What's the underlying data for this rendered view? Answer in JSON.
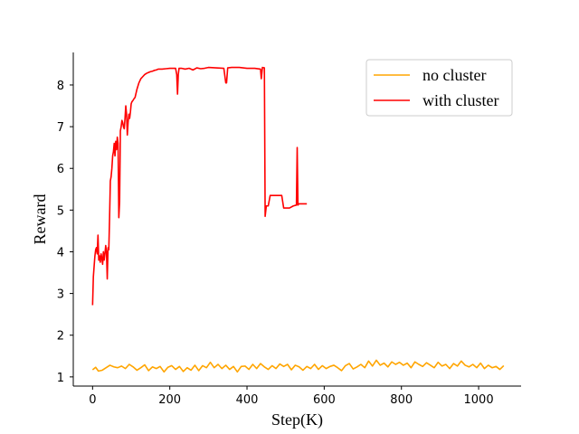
{
  "chart_data": {
    "type": "line",
    "xlabel": "Step(K)",
    "ylabel": "Reward",
    "xlim": [
      -50,
      1110
    ],
    "ylim": [
      0.78,
      8.78
    ],
    "xticks": [
      0,
      200,
      400,
      600,
      800,
      1000
    ],
    "yticks": [
      1,
      2,
      3,
      4,
      5,
      6,
      7,
      8
    ],
    "legend_position": "top-right",
    "series": [
      {
        "name": "no cluster",
        "color": "#FFA500",
        "x": [
          0,
          8,
          15,
          25,
          35,
          45,
          55,
          65,
          75,
          85,
          95,
          105,
          115,
          125,
          135,
          145,
          155,
          165,
          175,
          185,
          195,
          205,
          215,
          225,
          235,
          245,
          255,
          265,
          275,
          285,
          295,
          305,
          315,
          325,
          335,
          345,
          355,
          365,
          375,
          385,
          395,
          405,
          415,
          425,
          435,
          445,
          455,
          465,
          475,
          485,
          495,
          505,
          515,
          525,
          535,
          545,
          555,
          565,
          575,
          585,
          595,
          605,
          615,
          625,
          635,
          645,
          655,
          665,
          675,
          685,
          695,
          705,
          715,
          725,
          735,
          745,
          755,
          765,
          775,
          785,
          795,
          805,
          815,
          825,
          835,
          845,
          855,
          865,
          875,
          885,
          895,
          905,
          915,
          925,
          935,
          945,
          955,
          965,
          975,
          985,
          995,
          1005,
          1015,
          1025,
          1035,
          1045,
          1055,
          1065
        ],
        "values": [
          1.17,
          1.23,
          1.14,
          1.16,
          1.22,
          1.28,
          1.24,
          1.22,
          1.26,
          1.2,
          1.3,
          1.24,
          1.16,
          1.22,
          1.29,
          1.15,
          1.24,
          1.2,
          1.25,
          1.12,
          1.23,
          1.27,
          1.18,
          1.25,
          1.13,
          1.22,
          1.16,
          1.28,
          1.15,
          1.27,
          1.22,
          1.35,
          1.22,
          1.3,
          1.2,
          1.28,
          1.18,
          1.25,
          1.12,
          1.25,
          1.26,
          1.18,
          1.3,
          1.2,
          1.32,
          1.24,
          1.18,
          1.27,
          1.2,
          1.31,
          1.25,
          1.3,
          1.17,
          1.28,
          1.24,
          1.16,
          1.25,
          1.2,
          1.3,
          1.18,
          1.27,
          1.2,
          1.25,
          1.28,
          1.22,
          1.15,
          1.27,
          1.32,
          1.19,
          1.24,
          1.3,
          1.22,
          1.38,
          1.26,
          1.4,
          1.28,
          1.33,
          1.24,
          1.36,
          1.3,
          1.35,
          1.28,
          1.33,
          1.22,
          1.36,
          1.3,
          1.25,
          1.34,
          1.28,
          1.22,
          1.35,
          1.26,
          1.3,
          1.2,
          1.32,
          1.26,
          1.38,
          1.28,
          1.24,
          1.3,
          1.22,
          1.33,
          1.2,
          1.28,
          1.22,
          1.25,
          1.18,
          1.27
        ]
      },
      {
        "name": "with cluster",
        "color": "#FF0000",
        "x": [
          0,
          2,
          4,
          6,
          8,
          10,
          12,
          14,
          16,
          18,
          20,
          22,
          24,
          26,
          28,
          30,
          32,
          34,
          36,
          38,
          40,
          42,
          44,
          46,
          48,
          50,
          52,
          54,
          56,
          58,
          60,
          62,
          64,
          66,
          68,
          70,
          72,
          74,
          76,
          78,
          80,
          82,
          84,
          86,
          88,
          90,
          92,
          94,
          96,
          98,
          100,
          102,
          104,
          106,
          108,
          110,
          115,
          120,
          125,
          130,
          135,
          140,
          145,
          150,
          155,
          160,
          165,
          170,
          180,
          190,
          200,
          210,
          215,
          218,
          220,
          222,
          224,
          230,
          240,
          250,
          260,
          270,
          280,
          290,
          300,
          320,
          340,
          345,
          347,
          350,
          360,
          380,
          400,
          420,
          435,
          437,
          440,
          445,
          447,
          450,
          455,
          460,
          470,
          480,
          490,
          495,
          500,
          510,
          520,
          528,
          530,
          532,
          534,
          540,
          550,
          555
        ],
        "values": [
          2.72,
          3.4,
          3.65,
          3.9,
          4.05,
          4.1,
          3.95,
          4.4,
          3.8,
          3.9,
          3.75,
          3.95,
          3.85,
          3.7,
          4.0,
          3.8,
          3.95,
          4.15,
          4.0,
          3.35,
          4.1,
          4.05,
          4.8,
          5.7,
          5.8,
          6.0,
          6.3,
          6.4,
          6.6,
          6.3,
          6.65,
          6.45,
          6.75,
          6.6,
          4.82,
          5.2,
          6.9,
          7.0,
          7.15,
          7.1,
          7.0,
          6.95,
          7.2,
          7.5,
          7.3,
          6.8,
          7.1,
          7.3,
          7.2,
          7.35,
          7.55,
          7.6,
          7.62,
          7.65,
          7.68,
          7.7,
          7.9,
          8.05,
          8.15,
          8.2,
          8.25,
          8.28,
          8.3,
          8.32,
          8.33,
          8.35,
          8.36,
          8.38,
          8.38,
          8.39,
          8.4,
          8.4,
          8.4,
          8.25,
          7.78,
          8.25,
          8.4,
          8.4,
          8.38,
          8.4,
          8.36,
          8.41,
          8.39,
          8.4,
          8.42,
          8.41,
          8.4,
          8.05,
          8.05,
          8.41,
          8.42,
          8.42,
          8.4,
          8.4,
          8.38,
          8.15,
          8.42,
          8.41,
          4.85,
          5.1,
          5.1,
          5.35,
          5.35,
          5.35,
          5.35,
          5.05,
          5.05,
          5.05,
          5.1,
          5.12,
          6.5,
          5.12,
          5.15,
          5.15,
          5.15,
          5.15
        ]
      }
    ]
  }
}
